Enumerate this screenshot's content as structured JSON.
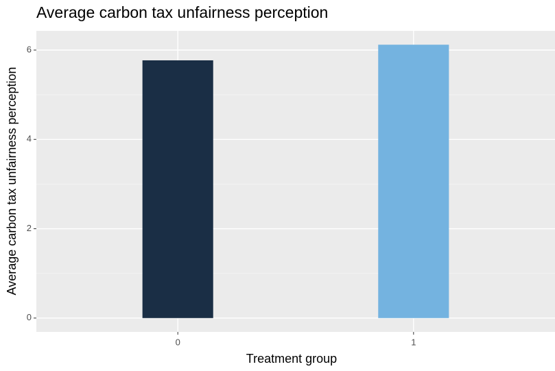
{
  "chart_data": {
    "type": "bar",
    "title": "Average carbon tax unfairness perception",
    "x_label": "Treatment group",
    "y_label": "Average carbon tax unfairness perception",
    "categories": [
      "0",
      "1"
    ],
    "values": [
      5.77,
      6.12
    ],
    "colors": [
      "#1a2e45",
      "#74b3e0"
    ],
    "ylim": [
      -0.31,
      6.43
    ],
    "yticks": [
      0,
      2,
      4,
      6
    ],
    "y_minor_ticks": [
      1,
      3,
      5
    ],
    "grid": true
  }
}
